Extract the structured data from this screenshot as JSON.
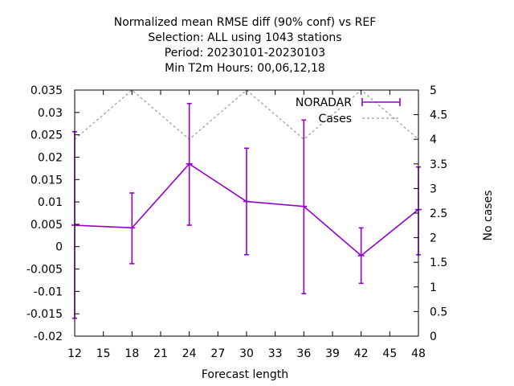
{
  "chart_data": {
    "type": "line",
    "title_lines": [
      "Normalized mean RMSE diff (90% conf) vs REF",
      "Selection: ALL using  1043 stations",
      "Period: 20230101-20230103",
      "Min T2m   Hours:  00,06,12,18"
    ],
    "xlabel": "Forecast length",
    "y2label": "No cases",
    "x_ticks": [
      "12",
      "15",
      "18",
      "21",
      "24",
      "27",
      "30",
      "33",
      "36",
      "39",
      "42",
      "45",
      "48"
    ],
    "y_ticks": [
      "-0.02",
      "-0.015",
      "-0.01",
      "-0.005",
      "0",
      "0.005",
      "0.01",
      "0.015",
      "0.02",
      "0.025",
      "0.03",
      "0.035"
    ],
    "y2_ticks": [
      "0",
      "0.5",
      "1",
      "1.5",
      "2",
      "2.5",
      "3",
      "3.5",
      "4",
      "4.5",
      "5"
    ],
    "xlim": [
      12,
      48
    ],
    "ylim": [
      -0.02,
      0.035
    ],
    "y2lim": [
      0,
      5
    ],
    "grid": false,
    "legend_position": "top-right",
    "series": [
      {
        "name": "NORADAR",
        "color": "#9400d3",
        "x": [
          12,
          18,
          24,
          30,
          36,
          42,
          48
        ],
        "y": [
          0.0048,
          0.0042,
          0.0185,
          0.0101,
          0.009,
          -0.002,
          0.0083
        ],
        "err_low": [
          -0.016,
          -0.0038,
          0.0048,
          -0.0018,
          -0.0105,
          -0.0082,
          -0.0018
        ],
        "err_high": [
          0.0257,
          0.012,
          0.032,
          0.022,
          0.0283,
          0.0042,
          0.0178
        ]
      },
      {
        "name": "Cases",
        "color": "#a0a0a0",
        "axis": "y2",
        "x": [
          12,
          18,
          24,
          30,
          36,
          42,
          48
        ],
        "y": [
          4,
          5,
          4,
          5,
          4,
          5,
          4
        ]
      }
    ]
  }
}
